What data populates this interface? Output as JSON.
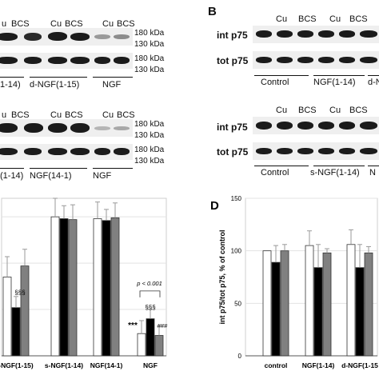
{
  "panel_a": {
    "blot1": {
      "lane_labels": [
        "u",
        "BCS",
        "Cu",
        "BCS",
        "Cu",
        "BCS"
      ],
      "kda_top": [
        "180 kDa",
        "130 kDa"
      ],
      "kda_bottom": [
        "180 kDa",
        "130 kDa"
      ],
      "groups": [
        "1-14)",
        "d-NGF(1-15)",
        "NGF"
      ]
    },
    "blot2": {
      "lane_labels": [
        "u",
        "BCS",
        "Cu",
        "BCS",
        "Cu",
        "BCS"
      ],
      "kda_top": [
        "180 kDa",
        "130 kDa"
      ],
      "kda_bottom": [
        "180 kDa",
        "130 kDa"
      ],
      "groups": [
        "(1-14)",
        "NGF(14-1)",
        "NGF"
      ]
    }
  },
  "panel_b": {
    "letter": "B",
    "blot1": {
      "lane_labels": [
        "Cu",
        "BCS",
        "Cu",
        "BCS"
      ],
      "row_labels": [
        "int p75",
        "tot p75"
      ],
      "groups": [
        "Control",
        "NGF(1-14)",
        "d-N"
      ]
    },
    "blot2": {
      "lane_labels": [
        "Cu",
        "BCS",
        "Cu",
        "BCS"
      ],
      "row_labels": [
        "int p75",
        "tot p75"
      ],
      "groups": [
        "Control",
        "s-NGF(1-14)",
        "N"
      ]
    }
  },
  "chart_data": [
    {
      "type": "bar",
      "panel": "C",
      "categories": [
        "-NGF(1-15)",
        "s-NGF(1-14)",
        "NGF(14-1)",
        "NGF"
      ],
      "series": [
        {
          "values": [
            85,
            150,
            148,
            24
          ]
        },
        {
          "values": [
            52,
            148,
            146,
            40
          ]
        },
        {
          "values": [
            97,
            147,
            149,
            22
          ]
        }
      ],
      "annotations": [
        "§§§",
        "***",
        "§§§",
        "###",
        "p < 0.001"
      ],
      "ylim": [
        0,
        170
      ],
      "grid": true,
      "colors": [
        "#ffffff",
        "#000000",
        "#808080"
      ]
    },
    {
      "type": "bar",
      "panel": "D",
      "title": "D",
      "categories": [
        "control",
        "NGF(1-14)",
        "d-NGF(1-15"
      ],
      "series": [
        {
          "values": [
            100,
            105,
            106
          ]
        },
        {
          "values": [
            89,
            84,
            84
          ]
        },
        {
          "values": [
            100,
            98,
            98
          ]
        }
      ],
      "ylabel": "int p75/tot p75, % of control",
      "yticks": [
        0,
        50,
        100,
        150
      ],
      "ylim": [
        0,
        150
      ],
      "grid": true,
      "colors": [
        "#ffffff",
        "#000000",
        "#808080"
      ]
    }
  ]
}
